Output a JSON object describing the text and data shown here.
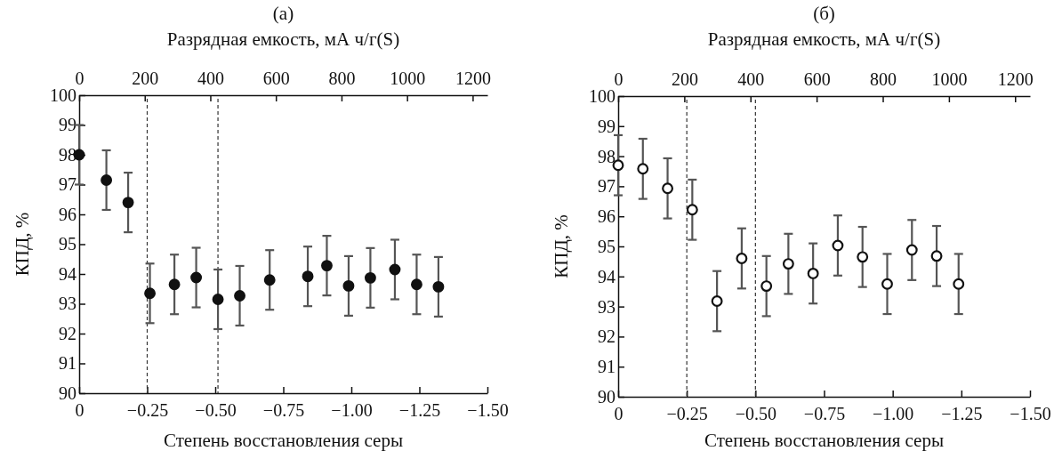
{
  "chart_data": [
    {
      "type": "scatter",
      "title": "(a)",
      "xlabel": "Степень восстановления серы",
      "x2label": "Разрядная емкость, мА ч/г(S)",
      "ylabel": "КПД, %",
      "xlim": [
        0,
        -1.5
      ],
      "xticks": [
        0,
        {
          "value": -0.25,
          "label": "−0.25"
        },
        {
          "value": -0.5,
          "label": "−0.50"
        },
        {
          "value": -0.75,
          "label": "−0.75"
        },
        {
          "value": -1.0,
          "label": "−1.00"
        },
        {
          "value": -1.25,
          "label": "−1.25"
        },
        {
          "value": -1.5,
          "label": "−1.50"
        }
      ],
      "x2lim": [
        0,
        1245
      ],
      "x2ticks": [
        0,
        200,
        400,
        600,
        800,
        1000,
        1200
      ],
      "ylim": [
        90,
        100
      ],
      "yticks": [
        90,
        91,
        92,
        93,
        94,
        95,
        96,
        97,
        98,
        99,
        100
      ],
      "marker": "circle",
      "ref_lines": [
        {
          "axis": "x",
          "value": -0.25,
          "line_style": "dashed",
          "color": "#333333"
        },
        {
          "axis": "x",
          "value": -0.51,
          "line_style": "dashed",
          "color": "#333333"
        }
      ],
      "series": [
        {
          "color": "#111111",
          "x": [
            0,
            -0.1,
            -0.18,
            -0.26,
            -0.35,
            -0.43,
            -0.51,
            -0.59,
            -0.7,
            -0.84,
            -0.91,
            -0.99,
            -1.07,
            -1.16,
            -1.24,
            -1.32
          ],
          "values": [
            98.0,
            97.15,
            96.4,
            93.35,
            93.65,
            93.88,
            93.15,
            93.27,
            93.8,
            93.92,
            94.28,
            93.6,
            93.87,
            94.15,
            93.65,
            93.57
          ],
          "errors": [
            1,
            1,
            1,
            1,
            1,
            1,
            1,
            1,
            1,
            1,
            1,
            1,
            1,
            1,
            1,
            1
          ]
        }
      ]
    },
    {
      "type": "scatter",
      "title": "(б)",
      "xlabel": "Степень восстановления серы",
      "x2label": "Разрядная емкость, мА ч/г(S)",
      "ylabel": "КПД, %",
      "xlim": [
        0,
        -1.5
      ],
      "xticks": [
        0,
        {
          "value": -0.25,
          "label": "−0.25"
        },
        {
          "value": -0.5,
          "label": "−0.50"
        },
        {
          "value": -0.75,
          "label": "−0.75"
        },
        {
          "value": -1.0,
          "label": "−1.00"
        },
        {
          "value": -1.25,
          "label": "−1.25"
        },
        {
          "value": -1.5,
          "label": "−1.50"
        }
      ],
      "x2lim": [
        0,
        1245
      ],
      "x2ticks": [
        0,
        200,
        400,
        600,
        800,
        1000,
        1200
      ],
      "ylim": [
        90,
        100
      ],
      "yticks": [
        90,
        91,
        92,
        93,
        94,
        95,
        96,
        97,
        98,
        99,
        100
      ],
      "marker": "circle",
      "ref_lines": [
        {
          "axis": "x",
          "value": -0.25,
          "line_style": "dashed",
          "color": "#333333"
        },
        {
          "axis": "x",
          "value": -0.5,
          "line_style": "dashed",
          "color": "#333333"
        }
      ],
      "series": [
        {
          "color": "#ffffff",
          "x": [
            0,
            -0.09,
            -0.18,
            -0.27,
            -0.36,
            -0.45,
            -0.54,
            -0.62,
            -0.71,
            -0.8,
            -0.89,
            -0.98,
            -1.07,
            -1.16,
            -1.24
          ],
          "values": [
            97.7,
            97.58,
            96.93,
            96.22,
            93.18,
            94.6,
            93.68,
            94.42,
            94.1,
            95.03,
            94.65,
            93.75,
            94.88,
            94.68,
            93.75
          ],
          "errors": [
            1,
            1,
            1,
            1,
            1,
            1,
            1,
            1,
            1,
            1,
            1,
            1,
            1,
            1,
            1
          ]
        }
      ]
    }
  ]
}
